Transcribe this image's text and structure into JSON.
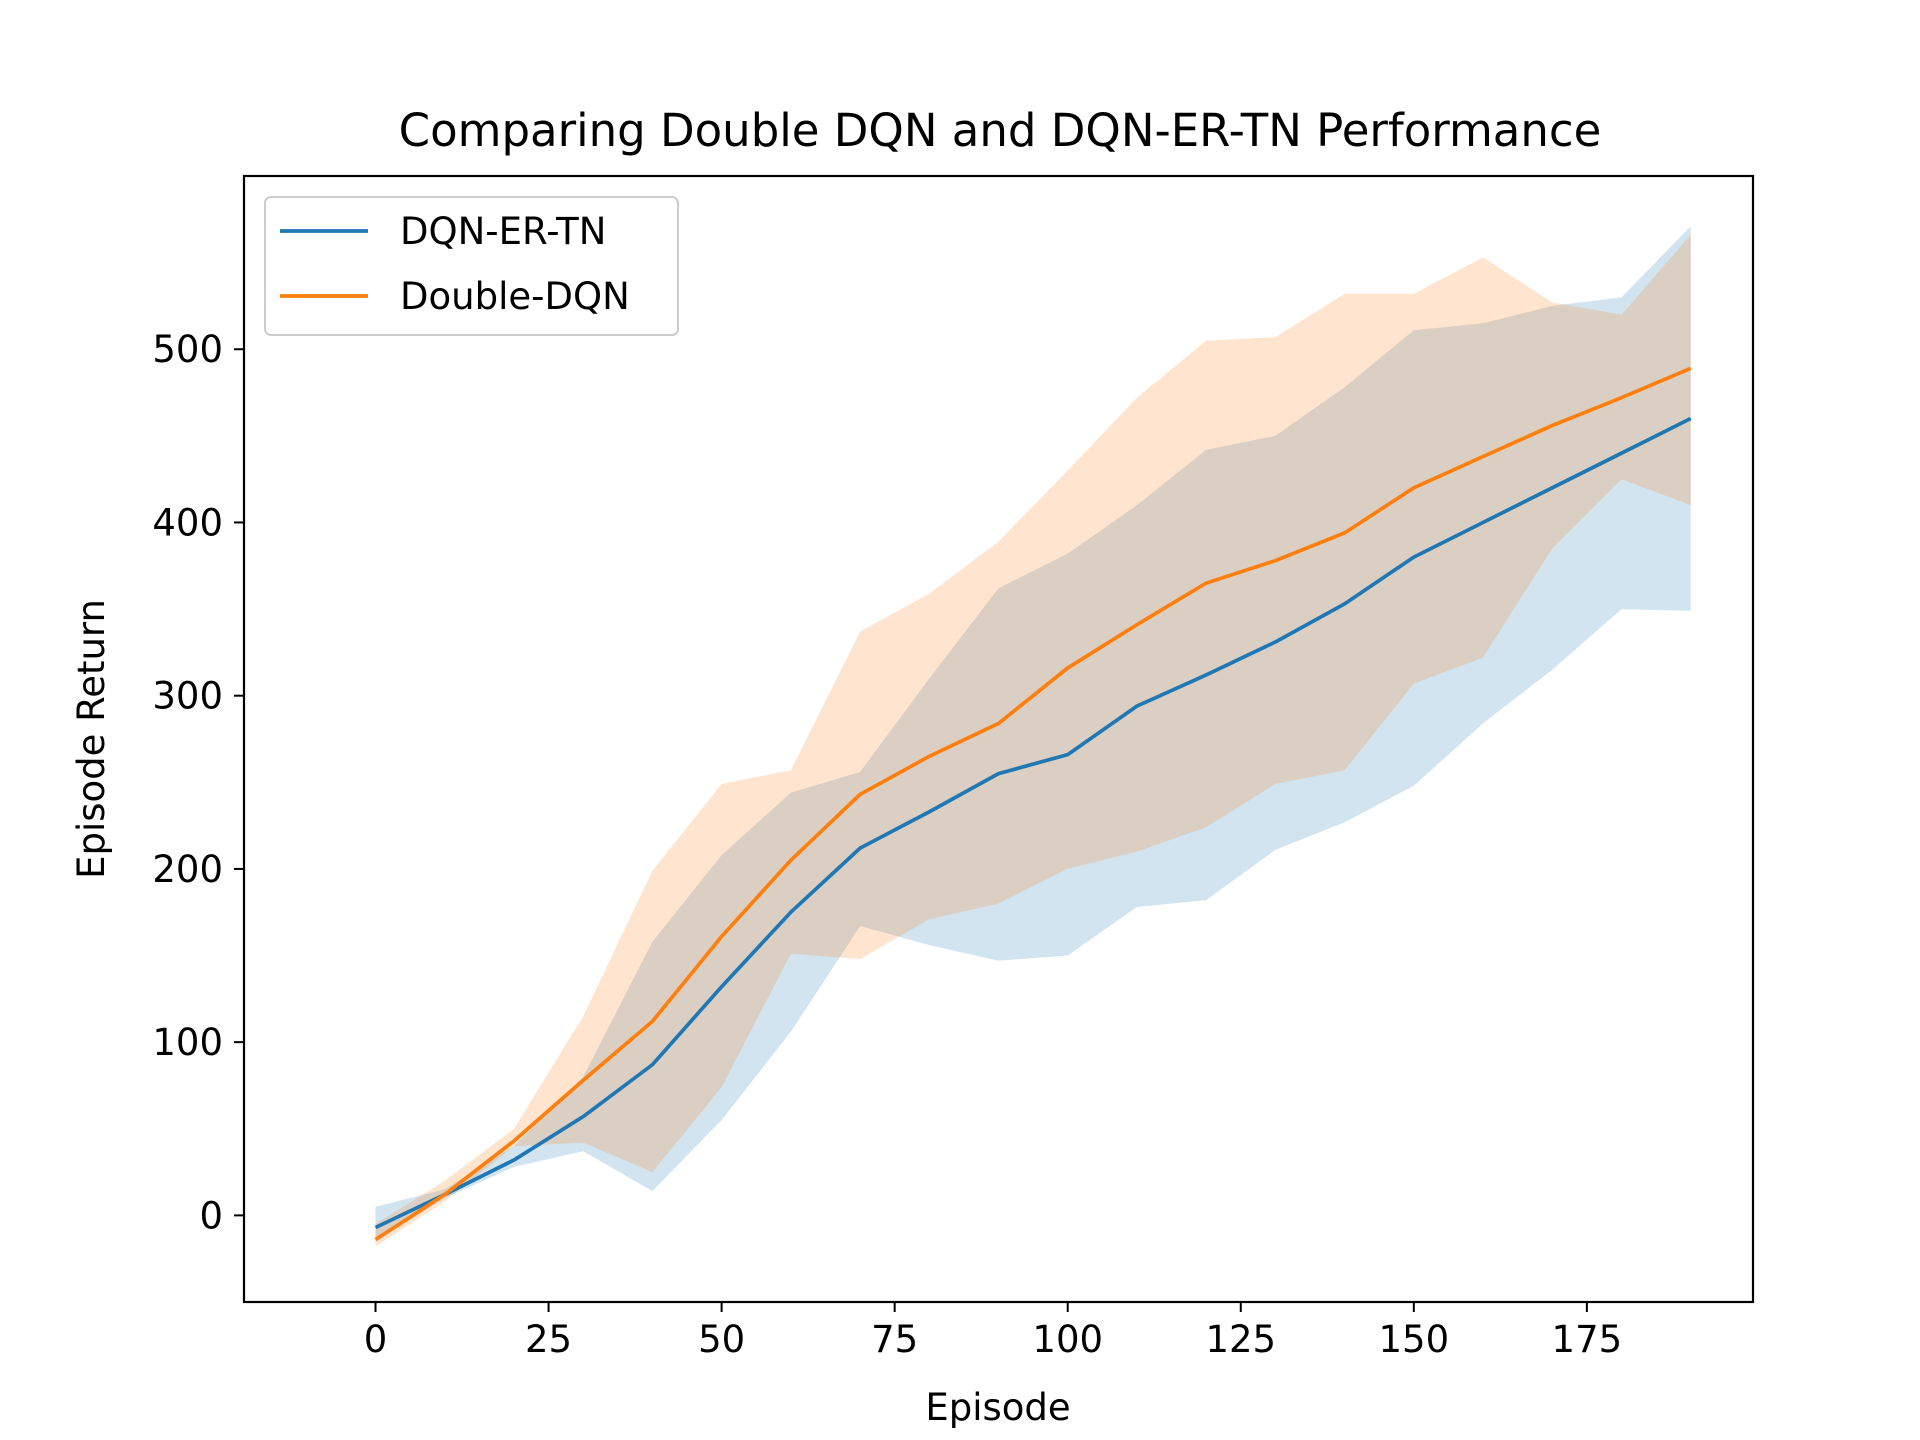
{
  "chart_data": {
    "type": "line",
    "title": "Comparing Double DQN and DQN-ER-TN Performance",
    "xlabel": "Episode",
    "ylabel": "Episode Return",
    "xlim": [
      -19,
      199
    ],
    "ylim": [
      -50,
      600
    ],
    "x_ticks": [
      0,
      25,
      50,
      75,
      100,
      125,
      150,
      175
    ],
    "y_ticks": [
      0,
      100,
      200,
      300,
      400,
      500
    ],
    "grid": false,
    "legend_position": "upper-left",
    "x": [
      0,
      10,
      20,
      30,
      40,
      50,
      60,
      70,
      80,
      90,
      100,
      110,
      120,
      130,
      140,
      150,
      160,
      170,
      180,
      190
    ],
    "series": [
      {
        "name": "DQN-ER-TN",
        "color": "#1f77b4",
        "values": [
          -7,
          12,
          32,
          57,
          87,
          132,
          175,
          212,
          233,
          255,
          266,
          294,
          312,
          331,
          353,
          380,
          400,
          420,
          440,
          460
        ],
        "band_upper": [
          5,
          15,
          40,
          80,
          158,
          208,
          244,
          256,
          310,
          362,
          382,
          410,
          442,
          450,
          478,
          511,
          515,
          525,
          530,
          571
        ],
        "band_lower": [
          -15,
          10,
          28,
          37,
          14,
          55,
          106,
          167,
          156,
          147,
          150,
          178,
          182,
          211,
          227,
          248,
          284,
          315,
          350,
          349
        ]
      },
      {
        "name": "Double-DQN",
        "color": "#ff7f0e",
        "values": [
          -14,
          12,
          43,
          78,
          112,
          161,
          205,
          243,
          265,
          284,
          316,
          341,
          365,
          378,
          394,
          420,
          438,
          456,
          472,
          489
        ],
        "band_upper": [
          -5,
          20,
          50,
          115,
          199,
          249,
          257,
          337,
          359,
          389,
          430,
          472,
          505,
          507,
          532,
          532,
          553,
          527,
          520,
          566
        ],
        "band_lower": [
          -18,
          8,
          40,
          42,
          25,
          74,
          151,
          148,
          171,
          180,
          200,
          210,
          224,
          249,
          257,
          307,
          322,
          385,
          425,
          410
        ]
      }
    ]
  }
}
